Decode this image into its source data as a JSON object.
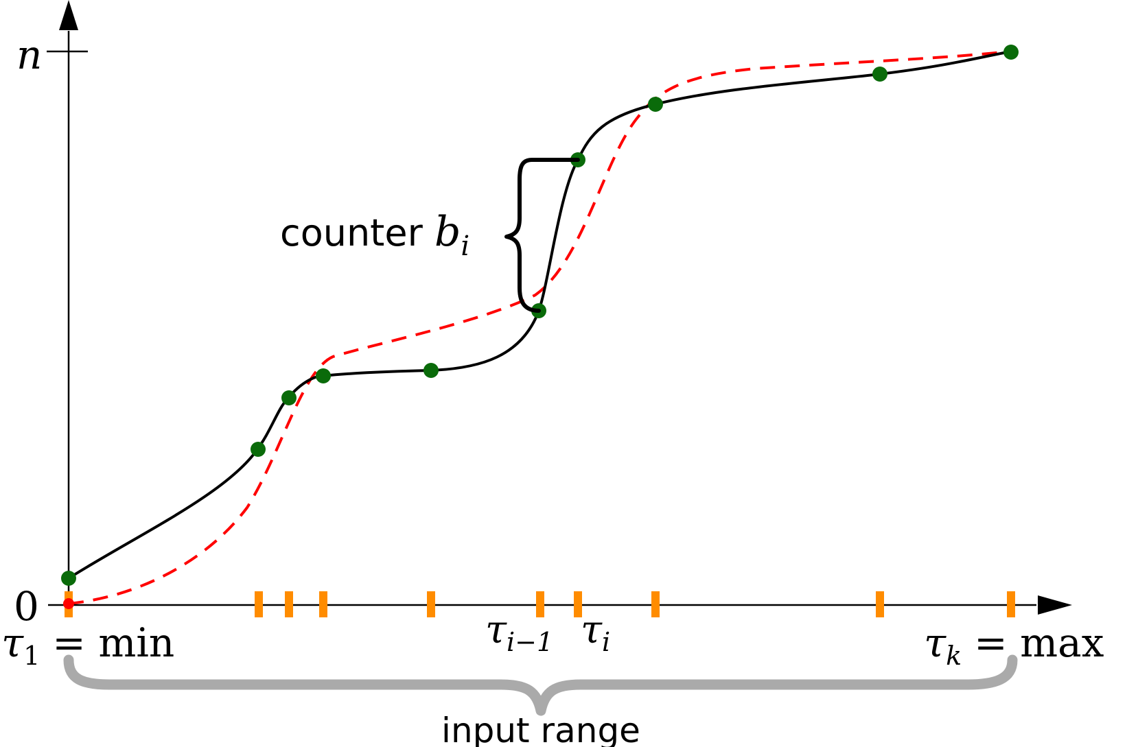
{
  "y_axis": {
    "top_label": "n",
    "bottom_label": "0"
  },
  "x_axis": {
    "left_label": {
      "symbol": "τ",
      "sub": "1",
      "rel": "= min"
    },
    "right_label": {
      "symbol": "τ",
      "sub": "k",
      "rel": "= max"
    },
    "mid_labels": [
      {
        "symbol": "τ",
        "sub": "i−1"
      },
      {
        "symbol": "τ",
        "sub": "i"
      }
    ]
  },
  "counter_label": {
    "text": "counter ",
    "symbol": "b",
    "sub": "i"
  },
  "range_label": "input range",
  "colors": {
    "axis": "#000000",
    "solid_curve": "#000000",
    "dashed_curve": "#ff0000",
    "points": "#006400",
    "ticks": "#ff8c00",
    "range_brace": "#aaaaaa",
    "counter_brace": "#000000"
  },
  "icons": {
    "x_arrow": "arrowhead-right-icon",
    "y_arrow": "arrowhead-up-icon"
  }
}
